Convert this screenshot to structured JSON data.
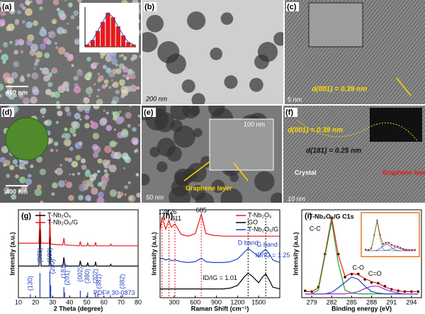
{
  "panels": [
    {
      "label": "(a)",
      "scale_bar": "400 nm",
      "inset": {
        "type": "bar",
        "values": [
          2,
          6,
          14,
          22,
          30,
          26,
          18,
          10,
          4,
          2
        ],
        "color": "#e41a1c",
        "line_color": "#1f4fbf",
        "ylim": [
          0,
          35
        ]
      }
    },
    {
      "label": "(b)",
      "scale_bar": "200 nm"
    },
    {
      "label": "(c)",
      "annotation": "d(001) = 0.39 nm",
      "scale_bar": "5 nm"
    },
    {
      "label": "(d)",
      "scale_bar": "400 nm"
    },
    {
      "label": "(e)",
      "inset_scale_bar": "100 nm",
      "annotation": "Graphene layer",
      "scale_bar": "50 nm"
    },
    {
      "label": "(f)",
      "annotations": [
        "d(001) = 0.39 nm",
        "d(181) = 0.25 nm",
        "Crystal",
        "Graphene layer"
      ],
      "scale_bar": "10 nm"
    }
  ],
  "chart_data": [
    {
      "type": "line",
      "label": "(g)",
      "xlabel": "2 Theta (degree)",
      "ylabel": "Intensity (a.u.)",
      "xlim": [
        10,
        80
      ],
      "xticks": [
        10,
        20,
        30,
        40,
        50,
        60,
        70,
        80
      ],
      "ylim": [
        0,
        100
      ],
      "legend": "top-left",
      "x": [
        10,
        17,
        22,
        22.6,
        23.2,
        28,
        28.4,
        28.9,
        36,
        36.6,
        37.2,
        45.6,
        46.2,
        46.8,
        50,
        50.5,
        51,
        54.6,
        55.1,
        55.6,
        63.5,
        64,
        64.5,
        71,
        80
      ],
      "series": [
        {
          "name": "T-Nb₂O₅",
          "color": "#000000",
          "values": [
            36,
            36,
            36,
            78,
            36,
            36,
            70,
            36,
            36,
            46,
            36,
            36,
            42,
            36,
            36,
            40,
            36,
            36,
            41,
            36,
            36,
            38,
            36,
            36,
            36
          ]
        },
        {
          "name": "T-Nb₂O₅/G",
          "color": "#e41a1c",
          "values": [
            62,
            62,
            62,
            98,
            62,
            62,
            92,
            61,
            60,
            68,
            60,
            59,
            64,
            59,
            59,
            62,
            59,
            59,
            63,
            59,
            59,
            61,
            59,
            59,
            59
          ]
        },
        {
          "style": "stem",
          "color": "#1f3fbf",
          "x": [
            17,
            22.6,
            28.4,
            28.9,
            36.6,
            37,
            46.2,
            50.5,
            55.1,
            56.4,
            63.8,
            71
          ],
          "values": [
            4,
            28,
            30,
            14,
            12,
            6,
            8,
            6,
            6,
            4,
            3,
            3
          ]
        }
      ],
      "hkl_labels": [
        {
          "text": "(130)",
          "x": 17,
          "y": 8
        },
        {
          "text": "(001)",
          "x": 22.6,
          "y": 40
        },
        {
          "text": "(180)",
          "x": 28.4,
          "y": 40
        },
        {
          "text": "(200)",
          "x": 30.2,
          "y": 27
        },
        {
          "text": "(181)",
          "x": 36.6,
          "y": 22
        },
        {
          "text": "(201)",
          "x": 38.6,
          "y": 14
        },
        {
          "text": "(002)",
          "x": 46.2,
          "y": 18
        },
        {
          "text": "(380)",
          "x": 50.5,
          "y": 16
        },
        {
          "text": "(202)",
          "x": 55.1,
          "y": 16
        },
        {
          "text": "(381)",
          "x": 57.2,
          "y": 10
        },
        {
          "text": "(382)",
          "x": 71,
          "y": 10
        }
      ],
      "annotations": [
        {
          "text": "PDF# 30-0873",
          "x": 66,
          "y": 5,
          "color": "#1f3fbf"
        }
      ]
    },
    {
      "type": "line",
      "label": "(h)",
      "xlabel": "Raman Shift (cm⁻¹)",
      "ylabel": "Intensity (a.u.)",
      "xlim": [
        100,
        1800
      ],
      "xticks": [
        300,
        600,
        900,
        1200,
        1500
      ],
      "ylim": [
        0,
        100
      ],
      "legend": "top-right",
      "x": [
        100,
        128,
        180,
        226,
        260,
        311,
        400,
        500,
        600,
        685,
        750,
        850,
        1000,
        1100,
        1200,
        1300,
        1350,
        1400,
        1500,
        1550,
        1600,
        1650,
        1700,
        1800
      ],
      "series": [
        {
          "name": "T-Nb₂O₅",
          "color": "#e41a1c",
          "values": [
            75,
            92,
            78,
            88,
            80,
            84,
            72,
            70,
            73,
            95,
            73,
            71,
            70,
            70,
            70,
            70,
            70,
            70,
            70,
            70,
            70,
            70,
            70,
            70
          ]
        },
        {
          "name": "GO",
          "color": "#000000",
          "values": [
            10,
            10,
            10,
            10,
            10,
            10,
            10,
            10,
            10,
            10,
            10,
            10,
            10,
            11,
            14,
            24,
            28,
            25,
            17,
            23,
            27,
            20,
            12,
            10
          ]
        },
        {
          "name": "T-Nb₂O₅/G",
          "color": "#1f3fbf",
          "values": [
            44,
            45,
            43,
            44,
            42,
            43,
            41,
            40,
            41,
            45,
            41,
            40,
            40,
            41,
            44,
            52,
            56,
            53,
            47,
            52,
            55,
            50,
            43,
            40
          ]
        }
      ],
      "guides": [
        {
          "x": 128,
          "color": "#e41a1c"
        },
        {
          "x": 226,
          "color": "#e41a1c"
        },
        {
          "x": 311,
          "color": "#e41a1c"
        },
        {
          "x": 685,
          "color": "#e41a1c"
        },
        {
          "x": 1350,
          "color": "#000000"
        },
        {
          "x": 1600,
          "color": "#000000"
        }
      ],
      "annotations": [
        {
          "text": "128",
          "x": 150,
          "y": 97
        },
        {
          "text": "226",
          "x": 260,
          "y": 97
        },
        {
          "text": "311",
          "x": 330,
          "y": 90
        },
        {
          "text": "685",
          "x": 685,
          "y": 99
        },
        {
          "text": "D band",
          "x": 1350,
          "y": 62,
          "color": "#1f3fbf"
        },
        {
          "text": "G band",
          "x": 1620,
          "y": 60,
          "color": "#1f3fbf"
        },
        {
          "text": "ID/IG = 1.25",
          "x": 1700,
          "y": 48,
          "color": "#1f3fbf"
        },
        {
          "text": "ID/IG = 1.01",
          "x": 950,
          "y": 22
        }
      ]
    },
    {
      "type": "line",
      "label": "(i)",
      "title": "T-Nb₂O₅/G   C1s",
      "xlabel": "Binding energy (eV)",
      "ylabel": "Intensity (a.u.)",
      "xlim": [
        277.5,
        295.5
      ],
      "xticks": [
        279,
        282,
        285,
        288,
        291,
        294
      ],
      "ylim": [
        -5,
        110
      ],
      "x": [
        278,
        279,
        280,
        281,
        282,
        283,
        284,
        285,
        286,
        287,
        288,
        289,
        290,
        291,
        292,
        293,
        294,
        295
      ],
      "series": [
        {
          "style": "dots",
          "color": "#000000",
          "values": [
            4,
            3,
            9,
            52,
            99,
            52,
            22,
            26,
            26,
            19,
            15,
            14,
            10,
            6,
            4,
            3,
            3,
            3
          ]
        },
        {
          "color": "#e41a1c",
          "values": [
            3,
            3,
            8,
            53,
            100,
            51,
            23,
            27,
            25,
            20,
            16,
            14,
            9,
            6,
            4,
            3,
            3,
            3
          ]
        },
        {
          "color": "#2ca02c",
          "values": [
            0,
            0,
            5,
            50,
            95,
            40,
            5,
            1,
            0,
            0,
            0,
            0,
            0,
            0,
            0,
            0,
            0,
            0
          ]
        },
        {
          "color": "#1f3fbf",
          "values": [
            0,
            0,
            0,
            0,
            2,
            8,
            15,
            22,
            19,
            10,
            3,
            1,
            0,
            0,
            0,
            0,
            0,
            0
          ]
        },
        {
          "color": "#9b30c8",
          "values": [
            0,
            0,
            0,
            0,
            0,
            0,
            0,
            1,
            3,
            7,
            10,
            10,
            6,
            3,
            1,
            0,
            0,
            0
          ]
        }
      ],
      "annotations": [
        {
          "text": "C-C",
          "x": 279.5,
          "y": 85
        },
        {
          "text": "C-O",
          "x": 286,
          "y": 34
        },
        {
          "text": "C=O",
          "x": 288.5,
          "y": 26
        }
      ]
    }
  ]
}
